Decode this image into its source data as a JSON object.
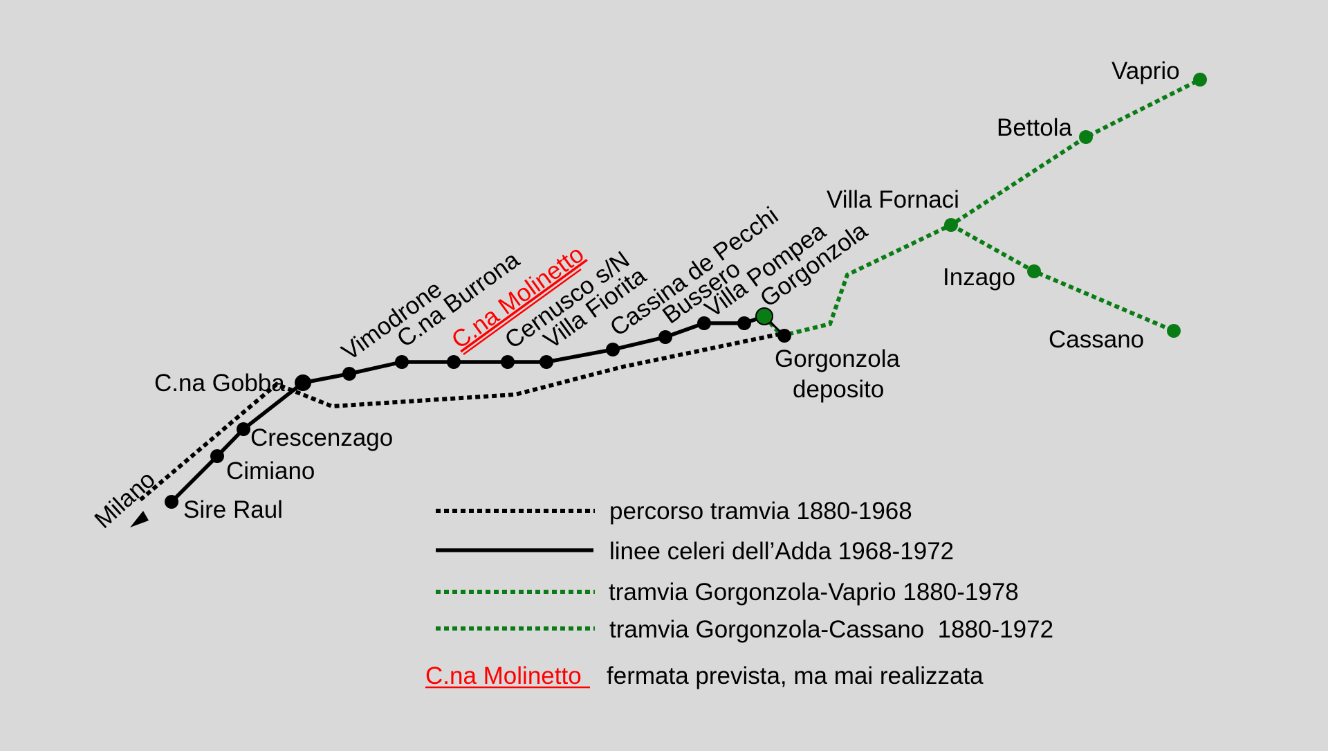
{
  "colors": {
    "background": "#d9d9d9",
    "tram_line": "#000000",
    "green_line": "#0a7c15",
    "planned_stop": "#ff0000"
  },
  "direction": {
    "label": "Milano"
  },
  "stations": {
    "sire_raul": "Sire Raul",
    "cimiano": "Cimiano",
    "crescenzago": "Crescenzago",
    "cna_gobba": "C.na Gobba",
    "vimodrone": "Vimodrone",
    "cna_burrona": "C.na Burrona",
    "cna_molinetto": "C.na Molinetto",
    "cernusco": "Cernusco s/N",
    "villa_fiorita": "Villa Fiorita",
    "cassina_de_pecchi": "Cassina de Pecchi",
    "bussero": "Bussero",
    "villa_pompea": "Villa Pompea",
    "gorgonzola": "Gorgonzola",
    "gorgonzola_deposito_line1": "Gorgonzola",
    "gorgonzola_deposito_line2": "deposito",
    "villa_fornaci": "Villa Fornaci",
    "inzago": "Inzago",
    "cassano": "Cassano",
    "bettola": "Bettola",
    "vaprio": "Vaprio"
  },
  "legend": {
    "tram_1880_1968": "percorso tramvia 1880-1968",
    "celeri_1968_1972": "linee celeri dell’Adda 1968-1972",
    "gorgonzola_vaprio": "tramvia Gorgonzola-Vaprio 1880-1978",
    "gorgonzola_cassano": "tramvia Gorgonzola-Cassano  1880-1972",
    "planned_stop_name": "C.na Molinetto",
    "planned_stop_desc": "fermata prevista, ma mai realizzata"
  }
}
